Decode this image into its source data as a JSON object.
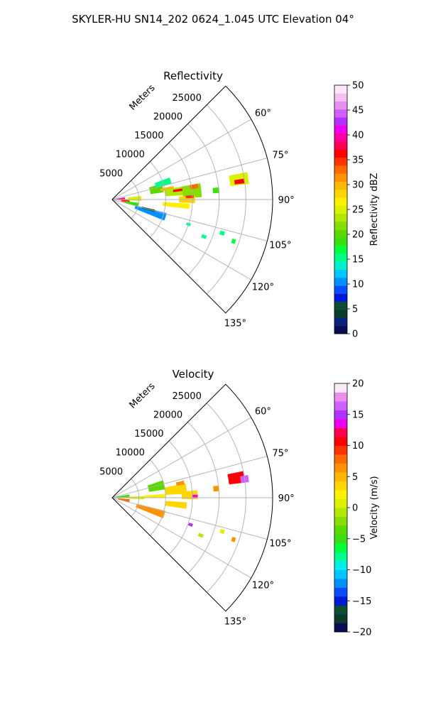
{
  "title": "SKYLER-HU  SN14_202  0624_1.045 UTC Elevation 04°",
  "chart_data": [
    {
      "type": "heatmap",
      "projection": "polar-sector",
      "title": "Reflectivity",
      "radial_label": "Meters",
      "radial_ticks": [
        5000,
        10000,
        15000,
        20000,
        25000
      ],
      "radial_range": [
        0,
        30000
      ],
      "azimuth_range_deg": [
        45,
        135
      ],
      "azimuth_ticks_deg": [
        60,
        75,
        90,
        105,
        120,
        135
      ],
      "azimuth_tick_labels": [
        "60°",
        "75°",
        "90°",
        "105°",
        "120°",
        "135°"
      ],
      "grid": true,
      "colorbar": {
        "label": "Reflectivity dBZ",
        "range": [
          0,
          50
        ],
        "ticks": [
          0,
          5,
          10,
          15,
          20,
          25,
          30,
          35,
          40,
          45,
          50
        ],
        "tick_labels": [
          "0",
          "5",
          "10",
          "15",
          "20",
          "25",
          "30",
          "35",
          "40",
          "45",
          "50"
        ],
        "colors": [
          "#0a0a55",
          "#08217a",
          "#0a3b2b",
          "#0d4d32",
          "#0019d6",
          "#0a4dff",
          "#0090ff",
          "#00c4ff",
          "#00f0d0",
          "#00ff88",
          "#00ff3c",
          "#38e010",
          "#5ad800",
          "#86dd00",
          "#b0e800",
          "#dcf000",
          "#fff000",
          "#ffd600",
          "#ffb800",
          "#ff9200",
          "#ff6a00",
          "#ff3200",
          "#ff0000",
          "#ff0050",
          "#ff00a0",
          "#ee00ee",
          "#b030ff",
          "#d060ff",
          "#e890f0",
          "#f4c0f0",
          "#fde8fb"
        ]
      },
      "cells": [
        {
          "r": 1500,
          "az": 87,
          "dr": 1800,
          "daz": 14,
          "value": 40
        },
        {
          "r": 2500,
          "az": 96,
          "dr": 1600,
          "daz": 12,
          "value": 34
        },
        {
          "r": 4200,
          "az": 88,
          "dr": 2500,
          "daz": 10,
          "value": 25
        },
        {
          "r": 3800,
          "az": 101,
          "dr": 2500,
          "daz": 8,
          "value": 18
        },
        {
          "r": 8500,
          "az": 77,
          "dr": 2500,
          "daz": 10,
          "value": 20
        },
        {
          "r": 10000,
          "az": 72,
          "dr": 3000,
          "daz": 6,
          "value": 15
        },
        {
          "r": 10500,
          "az": 79,
          "dr": 2500,
          "daz": 3,
          "value": 30
        },
        {
          "r": 12000,
          "az": 83,
          "dr": 4000,
          "daz": 7,
          "value": 24
        },
        {
          "r": 12500,
          "az": 82,
          "dr": 2000,
          "daz": 2,
          "value": 36
        },
        {
          "r": 15000,
          "az": 84,
          "dr": 3500,
          "daz": 9,
          "value": 22
        },
        {
          "r": 15500,
          "az": 81,
          "dr": 1500,
          "daz": 3,
          "value": 33
        },
        {
          "r": 14000,
          "az": 90,
          "dr": 3000,
          "daz": 5,
          "value": 28
        },
        {
          "r": 14500,
          "az": 88,
          "dr": 1500,
          "daz": 2,
          "value": 35
        },
        {
          "r": 12000,
          "az": 95,
          "dr": 5000,
          "daz": 4,
          "value": 26
        },
        {
          "r": 7500,
          "az": 108,
          "dr": 6000,
          "daz": 8,
          "value": 10
        },
        {
          "r": 7000,
          "az": 105,
          "dr": 2500,
          "daz": 3,
          "value": 6
        },
        {
          "r": 24000,
          "az": 81,
          "dr": 3500,
          "daz": 5,
          "value": 25
        },
        {
          "r": 24000,
          "az": 82,
          "dr": 1800,
          "daz": 2,
          "value": 36
        },
        {
          "r": 19500,
          "az": 85,
          "dr": 1200,
          "daz": 3,
          "value": 18
        },
        {
          "r": 15000,
          "az": 108,
          "dr": 800,
          "daz": 2,
          "value": 16
        },
        {
          "r": 18500,
          "az": 112,
          "dr": 900,
          "daz": 2,
          "value": 16
        },
        {
          "r": 21500,
          "az": 107,
          "dr": 900,
          "daz": 2,
          "value": 15
        },
        {
          "r": 24000,
          "az": 109,
          "dr": 700,
          "daz": 2,
          "value": 17
        }
      ]
    },
    {
      "type": "heatmap",
      "projection": "polar-sector",
      "title": "Velocity",
      "radial_label": "Meters",
      "radial_ticks": [
        5000,
        10000,
        15000,
        20000,
        25000
      ],
      "radial_range": [
        0,
        30000
      ],
      "azimuth_range_deg": [
        45,
        135
      ],
      "azimuth_ticks_deg": [
        60,
        75,
        90,
        105,
        120,
        135
      ],
      "azimuth_tick_labels": [
        "60°",
        "75°",
        "90°",
        "105°",
        "120°",
        "135°"
      ],
      "grid": true,
      "colorbar": {
        "label": "Velocity (m/s)",
        "range": [
          -20,
          20
        ],
        "ticks": [
          -20,
          -15,
          -10,
          -5,
          0,
          5,
          10,
          15,
          20
        ],
        "tick_labels": [
          "−20",
          "−15",
          "−10",
          "−5",
          "0",
          "5",
          "10",
          "15",
          "20"
        ],
        "colors": [
          "#0a0a55",
          "#0a3b2b",
          "#0d4d32",
          "#0019d6",
          "#0a4dff",
          "#0090ff",
          "#00c4ff",
          "#00f0e8",
          "#00ff88",
          "#00ff3c",
          "#38e010",
          "#5ad800",
          "#86dd00",
          "#b0e800",
          "#dcf000",
          "#fff000",
          "#ffd600",
          "#ffb800",
          "#ff9200",
          "#ff6a00",
          "#ff3200",
          "#ff0000",
          "#ff0050",
          "#ee00ee",
          "#b030ff",
          "#d060ff",
          "#e890f0",
          "#fde8fb"
        ]
      },
      "cells": [
        {
          "r": 2000,
          "az": 85,
          "dr": 2500,
          "daz": 12,
          "value": -4
        },
        {
          "r": 2200,
          "az": 100,
          "dr": 2200,
          "daz": 10,
          "value": 8
        },
        {
          "r": 4500,
          "az": 90,
          "dr": 3000,
          "daz": 6,
          "value": 1
        },
        {
          "r": 8500,
          "az": 76,
          "dr": 3000,
          "daz": 10,
          "value": -3
        },
        {
          "r": 8000,
          "az": 88,
          "dr": 4000,
          "daz": 4,
          "value": 2
        },
        {
          "r": 12000,
          "az": 83,
          "dr": 4000,
          "daz": 8,
          "value": 3
        },
        {
          "r": 13000,
          "az": 78,
          "dr": 1500,
          "daz": 3,
          "value": 7
        },
        {
          "r": 14500,
          "az": 88,
          "dr": 3000,
          "daz": 6,
          "value": 4
        },
        {
          "r": 15500,
          "az": 89,
          "dr": 1000,
          "daz": 2,
          "value": 14
        },
        {
          "r": 12000,
          "az": 96,
          "dr": 4000,
          "daz": 5,
          "value": 3
        },
        {
          "r": 7500,
          "az": 108,
          "dr": 5500,
          "daz": 8,
          "value": 6
        },
        {
          "r": 23500,
          "az": 81,
          "dr": 3000,
          "daz": 5,
          "value": 10
        },
        {
          "r": 25000,
          "az": 82,
          "dr": 1500,
          "daz": 3,
          "value": 16
        },
        {
          "r": 19500,
          "az": 85,
          "dr": 1000,
          "daz": 3,
          "value": 6
        },
        {
          "r": 15500,
          "az": 109,
          "dr": 800,
          "daz": 2,
          "value": 15
        },
        {
          "r": 18000,
          "az": 113,
          "dr": 900,
          "daz": 2,
          "value": -1
        },
        {
          "r": 21500,
          "az": 107,
          "dr": 800,
          "daz": 2,
          "value": 1
        },
        {
          "r": 24000,
          "az": 109,
          "dr": 700,
          "daz": 2,
          "value": 7
        }
      ]
    }
  ]
}
